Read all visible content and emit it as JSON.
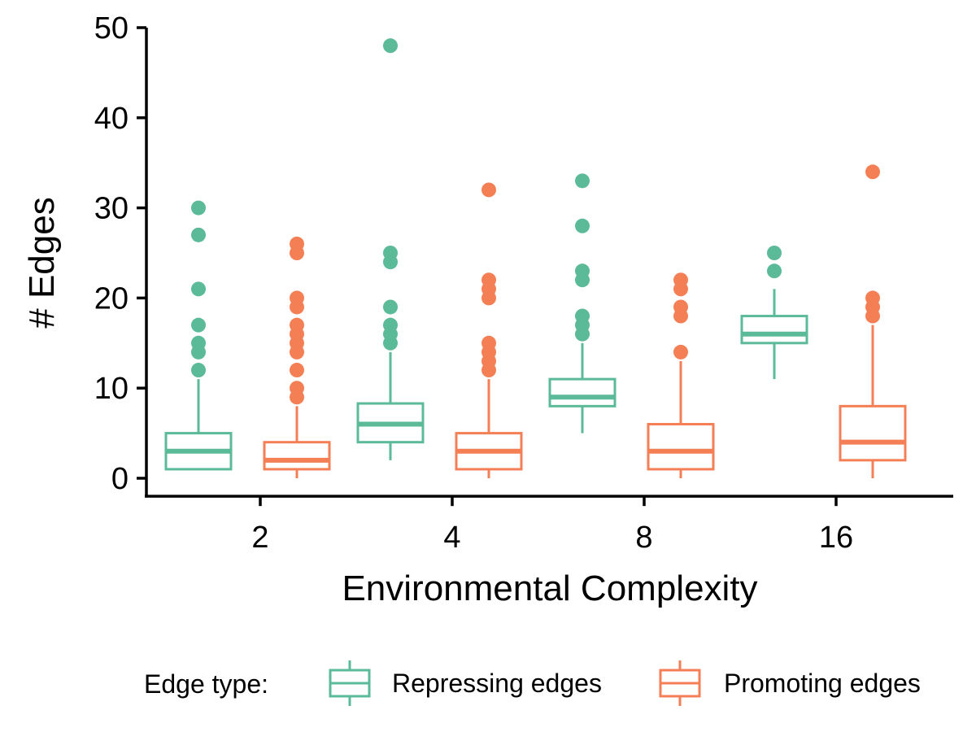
{
  "chart_data": {
    "type": "box",
    "xlabel": "Environmental Complexity",
    "ylabel": "# Edges",
    "categories": [
      "2",
      "4",
      "8",
      "16"
    ],
    "ylim": [
      -2,
      51
    ],
    "yticks": [
      0,
      10,
      20,
      30,
      40,
      50
    ],
    "grid": false,
    "legend": {
      "title": "Edge type:",
      "position": "bottom"
    },
    "series": [
      {
        "name": "Repressing edges",
        "color": "#5BBA98",
        "boxes": [
          {
            "category": "2",
            "whisker_low": 1,
            "q1": 1,
            "median": 3,
            "q3": 5,
            "whisker_high": 11,
            "outliers": [
              12,
              14,
              15,
              17,
              21,
              27,
              30
            ]
          },
          {
            "category": "4",
            "whisker_low": 2,
            "q1": 4,
            "median": 6,
            "q3": 8.3,
            "whisker_high": 14,
            "outliers": [
              15,
              16,
              17,
              19,
              24,
              25,
              48
            ]
          },
          {
            "category": "8",
            "whisker_low": 5,
            "q1": 8,
            "median": 9,
            "q3": 11,
            "whisker_high": 15,
            "outliers": [
              16,
              17,
              18,
              22,
              23,
              28,
              33
            ]
          },
          {
            "category": "16",
            "whisker_low": 11,
            "q1": 15,
            "median": 16,
            "q3": 18,
            "whisker_high": 21,
            "outliers": [
              23,
              25
            ]
          }
        ]
      },
      {
        "name": "Promoting edges",
        "color": "#F57F55",
        "boxes": [
          {
            "category": "2",
            "whisker_low": 0,
            "q1": 1,
            "median": 2,
            "q3": 4,
            "whisker_high": 8,
            "outliers": [
              9,
              10,
              12,
              14,
              15,
              16,
              17,
              19,
              20,
              25,
              26
            ]
          },
          {
            "category": "4",
            "whisker_low": 0,
            "q1": 1,
            "median": 3,
            "q3": 5,
            "whisker_high": 11,
            "outliers": [
              12,
              13,
              14,
              15,
              20,
              21,
              22,
              32
            ]
          },
          {
            "category": "8",
            "whisker_low": 0,
            "q1": 1,
            "median": 3,
            "q3": 6,
            "whisker_high": 13,
            "outliers": [
              14,
              18,
              19,
              21,
              22
            ]
          },
          {
            "category": "16",
            "whisker_low": 0,
            "q1": 2,
            "median": 4,
            "q3": 8,
            "whisker_high": 17,
            "outliers": [
              18,
              19,
              20,
              34
            ]
          }
        ]
      }
    ]
  }
}
